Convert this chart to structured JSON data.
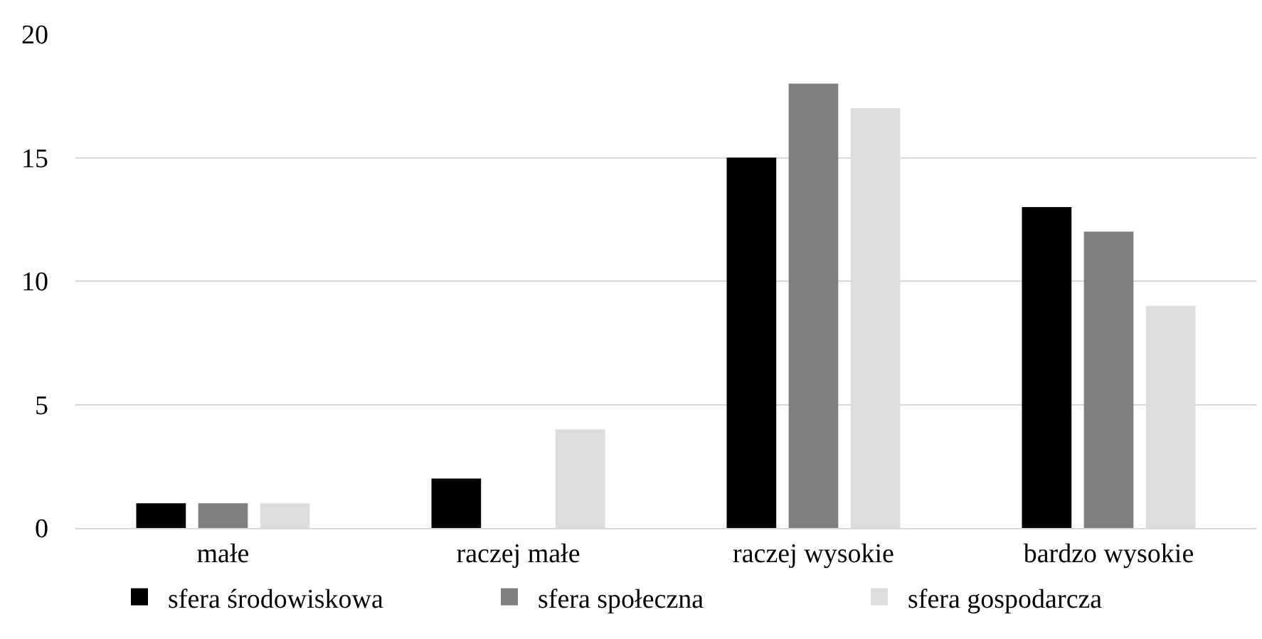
{
  "chart_data": {
    "type": "bar",
    "categories": [
      "małe",
      "raczej małe",
      "raczej wysokie",
      "bardzo wysokie"
    ],
    "series": [
      {
        "name": "sfera środowiskowa",
        "color": "#000000",
        "values": [
          1,
          2,
          15,
          13
        ]
      },
      {
        "name": "sfera społeczna",
        "color": "#7f7f7f",
        "values": [
          1,
          0,
          18,
          12
        ]
      },
      {
        "name": "sfera gospodarcza",
        "color": "#dddddd",
        "values": [
          1,
          4,
          17,
          9
        ]
      }
    ],
    "ylim": [
      0,
      20
    ],
    "yticks": [
      0,
      5,
      10,
      15,
      20
    ],
    "grid": "y",
    "legend": "bottom"
  }
}
